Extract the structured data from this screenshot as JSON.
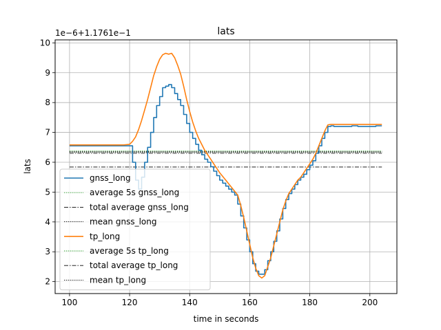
{
  "chart_data": {
    "type": "line",
    "title": "lats",
    "xlabel": "time in seconds",
    "ylabel": "lats",
    "offset_text": "1e−6+1.1761e−1",
    "xlim": [
      95.2,
      209.0
    ],
    "ylim": [
      1.6,
      10.1
    ],
    "xticks": [
      100,
      120,
      140,
      160,
      180,
      200
    ],
    "yticks": [
      2,
      3,
      4,
      5,
      6,
      7,
      8,
      9,
      10
    ],
    "grid": true,
    "legend_position": "lower-left",
    "legend": [
      {
        "label": "gnss_long",
        "color": "#1f77b4",
        "style": "solid"
      },
      {
        "label": "average 5s gnss_long",
        "color": "#2ca02c",
        "style": "dotted"
      },
      {
        "label": "total average gnss_long",
        "color": "#000000",
        "style": "dashdot"
      },
      {
        "label": "mean gnss_long",
        "color": "#000000",
        "style": "dotted"
      },
      {
        "label": "tp_long",
        "color": "#ff7f0e",
        "style": "solid"
      },
      {
        "label": "average 5s tp_long",
        "color": "#2ca02c",
        "style": "dotted"
      },
      {
        "label": "total average tp_long",
        "color": "#000000",
        "style": "dashdot"
      },
      {
        "label": "mean tp_long",
        "color": "#000000",
        "style": "dotted"
      }
    ],
    "series": [
      {
        "name": "gnss_long",
        "color": "#1f77b4",
        "step": true,
        "x": [
          100,
          120,
          121,
          122,
          123,
          124,
          125,
          126,
          127,
          128,
          129,
          130,
          131,
          132,
          133,
          134,
          135,
          136,
          137,
          138,
          139,
          140,
          141,
          142,
          143,
          144,
          145,
          146,
          147,
          148,
          149,
          150,
          151,
          152,
          153,
          154,
          155,
          156,
          157,
          158,
          159,
          160,
          161,
          162,
          163,
          164,
          165,
          166,
          167,
          168,
          169,
          170,
          171,
          172,
          173,
          174,
          175,
          176,
          177,
          178,
          179,
          180,
          181,
          182,
          183,
          184,
          185,
          186,
          187,
          188,
          190,
          192,
          194,
          196,
          198,
          200,
          202,
          204
        ],
        "y": [
          6.55,
          6.55,
          6.0,
          5.4,
          5.1,
          5.5,
          6.0,
          6.5,
          7.0,
          7.5,
          7.9,
          8.2,
          8.5,
          8.55,
          8.6,
          8.5,
          8.3,
          8.1,
          7.9,
          7.6,
          7.3,
          7.0,
          6.8,
          6.6,
          6.4,
          6.25,
          6.1,
          6.0,
          5.85,
          5.7,
          5.55,
          5.4,
          5.3,
          5.2,
          5.1,
          5.0,
          4.9,
          4.6,
          4.2,
          3.8,
          3.4,
          3.0,
          2.6,
          2.35,
          2.25,
          2.25,
          2.4,
          2.7,
          3.0,
          3.35,
          3.7,
          4.1,
          4.45,
          4.75,
          4.95,
          5.1,
          5.25,
          5.4,
          5.5,
          5.6,
          5.75,
          5.9,
          6.05,
          6.3,
          6.55,
          6.8,
          7.0,
          7.2,
          7.22,
          7.2,
          7.2,
          7.2,
          7.22,
          7.2,
          7.2,
          7.2,
          7.22,
          7.22
        ]
      },
      {
        "name": "tp_long",
        "color": "#ff7f0e",
        "step": false,
        "x": [
          100,
          118,
          120,
          121,
          122,
          123,
          124,
          125,
          126,
          127,
          128,
          129,
          130,
          131,
          132,
          133,
          134,
          135,
          136,
          137,
          138,
          139,
          140,
          141,
          142,
          143,
          144,
          145,
          146,
          147,
          148,
          149,
          150,
          152,
          154,
          156,
          157,
          158,
          159,
          160,
          161,
          162,
          163,
          164,
          165,
          166,
          167,
          168,
          169,
          170,
          171,
          172,
          173,
          174,
          175,
          176,
          177,
          178,
          179,
          180,
          181,
          182,
          183,
          184,
          185,
          186,
          187,
          188,
          190,
          195,
          200,
          204
        ],
        "y": [
          6.58,
          6.58,
          6.6,
          6.7,
          6.85,
          7.1,
          7.4,
          7.75,
          8.1,
          8.5,
          8.9,
          9.2,
          9.45,
          9.6,
          9.65,
          9.62,
          9.65,
          9.5,
          9.25,
          8.95,
          8.55,
          8.1,
          7.7,
          7.35,
          7.05,
          6.8,
          6.6,
          6.4,
          6.25,
          6.1,
          5.95,
          5.8,
          5.65,
          5.4,
          5.15,
          4.9,
          4.55,
          4.15,
          3.7,
          3.25,
          2.8,
          2.45,
          2.2,
          2.12,
          2.2,
          2.5,
          2.8,
          3.2,
          3.6,
          4.0,
          4.4,
          4.7,
          4.95,
          5.1,
          5.25,
          5.4,
          5.5,
          5.65,
          5.8,
          5.95,
          6.1,
          6.3,
          6.55,
          6.8,
          7.05,
          7.25,
          7.27,
          7.27,
          7.27,
          7.27,
          7.27,
          7.27
        ]
      }
    ],
    "reference_lines": [
      {
        "name": "average 5s gnss_long",
        "y": 6.33,
        "x_range": [
          100,
          204
        ],
        "color": "#2ca02c",
        "style": "dotted"
      },
      {
        "name": "total average gnss_long",
        "y": 5.84,
        "x_range": [
          100,
          204
        ],
        "color": "#000000",
        "style": "dashdot"
      },
      {
        "name": "mean gnss_long",
        "y": 6.36,
        "x_range": [
          100,
          204
        ],
        "color": "#000000",
        "style": "dotted"
      },
      {
        "name": "average 5s tp_long",
        "y": 6.38,
        "x_range": [
          100,
          204
        ],
        "color": "#2ca02c",
        "style": "dotted"
      },
      {
        "name": "total average tp_long",
        "y": 6.3,
        "x_range": [
          100,
          204
        ],
        "color": "#000000",
        "style": "dashdot"
      },
      {
        "name": "mean tp_long",
        "y": 6.33,
        "x_range": [
          100,
          204
        ],
        "color": "#000000",
        "style": "dotted"
      }
    ]
  }
}
